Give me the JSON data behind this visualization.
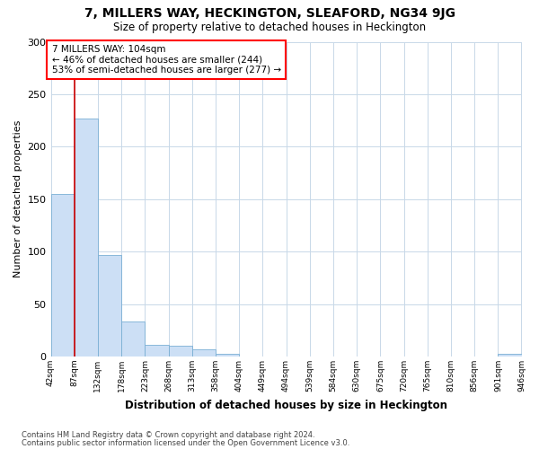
{
  "title": "7, MILLERS WAY, HECKINGTON, SLEAFORD, NG34 9JG",
  "subtitle": "Size of property relative to detached houses in Heckington",
  "xlabel": "Distribution of detached houses by size in Heckington",
  "ylabel": "Number of detached properties",
  "bar_color": "#ccdff5",
  "bar_edge_color": "#7aafd4",
  "background_color": "#ffffff",
  "grid_color": "#c8d8e8",
  "annotation_text": "7 MILLERS WAY: 104sqm\n← 46% of detached houses are smaller (244)\n53% of semi-detached houses are larger (277) →",
  "vline_x": 87,
  "vline_color": "#cc0000",
  "bin_edges": [
    42,
    87,
    132,
    178,
    223,
    268,
    313,
    358,
    404,
    449,
    494,
    539,
    584,
    630,
    675,
    720,
    765,
    810,
    856,
    901,
    946
  ],
  "bin_labels": [
    "42sqm",
    "87sqm",
    "132sqm",
    "178sqm",
    "223sqm",
    "268sqm",
    "313sqm",
    "358sqm",
    "404sqm",
    "449sqm",
    "494sqm",
    "539sqm",
    "584sqm",
    "630sqm",
    "675sqm",
    "720sqm",
    "765sqm",
    "810sqm",
    "856sqm",
    "901sqm",
    "946sqm"
  ],
  "bar_heights": [
    155,
    227,
    97,
    33,
    11,
    10,
    7,
    3,
    0,
    0,
    0,
    0,
    0,
    0,
    0,
    0,
    0,
    0,
    0,
    3,
    0
  ],
  "ylim": [
    0,
    300
  ],
  "yticks": [
    0,
    50,
    100,
    150,
    200,
    250,
    300
  ],
  "footnote1": "Contains HM Land Registry data © Crown copyright and database right 2024.",
  "footnote2": "Contains public sector information licensed under the Open Government Licence v3.0."
}
